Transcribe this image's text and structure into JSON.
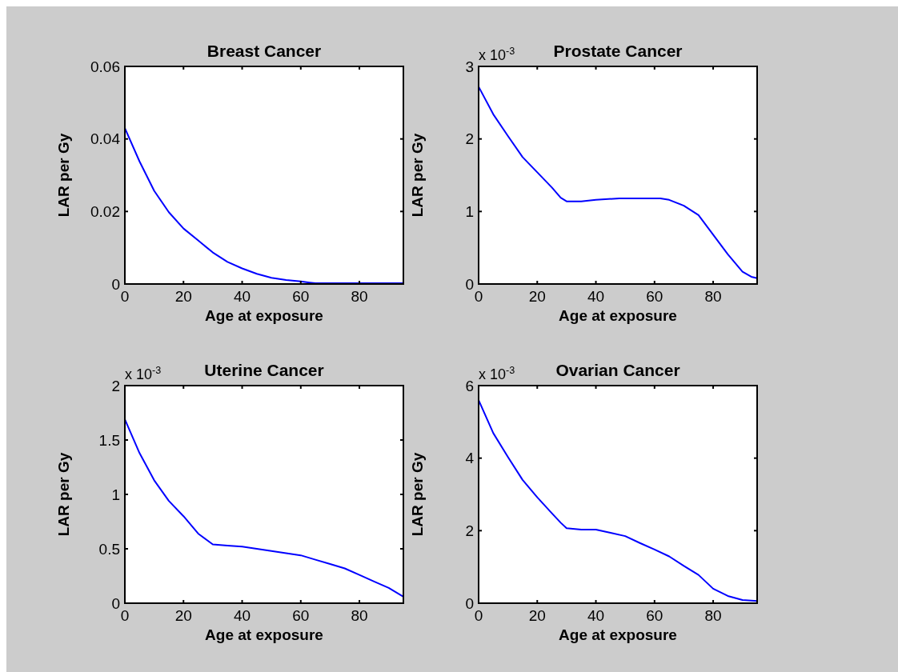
{
  "chart_data": [
    {
      "type": "line",
      "title": "Breast Cancer",
      "xlabel": "Age at exposure",
      "ylabel": "LAR per Gy",
      "x": [
        0,
        5,
        10,
        15,
        20,
        25,
        30,
        35,
        40,
        45,
        50,
        55,
        60,
        63,
        65,
        70,
        80,
        90,
        95
      ],
      "xlim": [
        0,
        95
      ],
      "xticks": [
        0,
        20,
        40,
        60,
        80
      ],
      "ylim": [
        0,
        0.06
      ],
      "yticks": [
        0,
        0.02,
        0.04,
        0.06
      ],
      "series": [
        {
          "color": "#0000ff",
          "values": [
            0.043,
            0.0338,
            0.0257,
            0.0198,
            0.0153,
            0.012,
            0.0087,
            0.0061,
            0.0043,
            0.0028,
            0.0017,
            0.0011,
            0.0007,
            0.0004,
            0.0002,
            0.0002,
            0.0002,
            0.0002,
            0.0002
          ]
        }
      ]
    },
    {
      "type": "line",
      "title": "Prostate Cancer",
      "xlabel": "Age at exposure",
      "ylabel": "LAR per Gy",
      "annotations": [
        "x 10$^{-3}$"
      ],
      "x": [
        0,
        5,
        10,
        15,
        20,
        25,
        28,
        30,
        35,
        40,
        48,
        62,
        65,
        70,
        75,
        80,
        85,
        90,
        93,
        95
      ],
      "xlim": [
        0,
        95
      ],
      "xticks": [
        0,
        20,
        40,
        60,
        80
      ],
      "ylim": [
        0,
        3
      ],
      "yticks": [
        0,
        1,
        2,
        3
      ],
      "series": [
        {
          "color": "#0000ff",
          "values": [
            2.72,
            2.34,
            2.04,
            1.75,
            1.54,
            1.33,
            1.19,
            1.14,
            1.14,
            1.16,
            1.18,
            1.18,
            1.16,
            1.08,
            0.95,
            0.68,
            0.41,
            0.17,
            0.1,
            0.08
          ]
        }
      ]
    },
    {
      "type": "line",
      "title": "Uterine Cancer",
      "xlabel": "Age at exposure",
      "ylabel": "LAR per Gy",
      "annotations": [
        "x 10$^{-3}$"
      ],
      "x": [
        0,
        5,
        10,
        15,
        20,
        25,
        30,
        35,
        40,
        50,
        60,
        65,
        70,
        75,
        80,
        85,
        90,
        95
      ],
      "xlim": [
        0,
        95
      ],
      "xticks": [
        0,
        20,
        40,
        60,
        80
      ],
      "ylim": [
        0,
        2
      ],
      "yticks": [
        0,
        0.5,
        1,
        1.5,
        2
      ],
      "series": [
        {
          "color": "#0000ff",
          "values": [
            1.69,
            1.38,
            1.13,
            0.94,
            0.8,
            0.64,
            0.54,
            0.53,
            0.52,
            0.48,
            0.44,
            0.4,
            0.36,
            0.32,
            0.26,
            0.2,
            0.14,
            0.06
          ]
        }
      ]
    },
    {
      "type": "line",
      "title": "Ovarian Cancer",
      "xlabel": "Age at exposure",
      "ylabel": "LAR per Gy",
      "annotations": [
        "x 10$^{-3}$"
      ],
      "x": [
        0,
        5,
        10,
        15,
        20,
        25,
        28,
        30,
        35,
        40,
        45,
        50,
        55,
        60,
        65,
        70,
        75,
        80,
        85,
        90,
        95
      ],
      "xlim": [
        0,
        95
      ],
      "xticks": [
        0,
        20,
        40,
        60,
        80
      ],
      "ylim": [
        0,
        6
      ],
      "yticks": [
        0,
        2,
        4,
        6
      ],
      "series": [
        {
          "color": "#0000ff",
          "values": [
            5.6,
            4.69,
            4.03,
            3.4,
            2.92,
            2.48,
            2.22,
            2.07,
            2.03,
            2.03,
            1.94,
            1.85,
            1.66,
            1.48,
            1.29,
            1.03,
            0.78,
            0.4,
            0.2,
            0.09,
            0.06
          ]
        }
      ]
    }
  ]
}
